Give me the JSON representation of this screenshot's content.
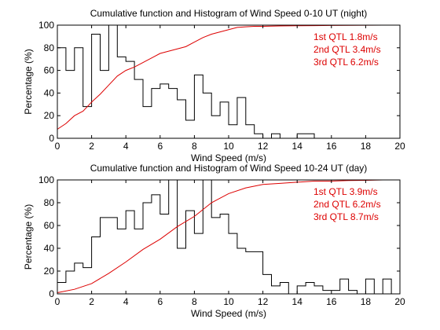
{
  "chart_data": [
    {
      "type": "line",
      "title": "Cumulative function and Histogram of Wind Speed 0-10 UT (night)",
      "xlabel": "Wind Speed (m/s)",
      "ylabel": "Percentage (%)",
      "xlim": [
        0,
        20
      ],
      "ylim": [
        0,
        100
      ],
      "xticks": [
        "0",
        "2",
        "4",
        "6",
        "8",
        "10",
        "12",
        "14",
        "16",
        "18",
        "20"
      ],
      "yticks": [
        "0",
        "20",
        "40",
        "60",
        "80",
        "100"
      ],
      "grid": false,
      "annotations": [
        "1st QTL 1.8m/s",
        "2nd QTL 3.4m/s",
        "3rd QTL 6.2m/s"
      ],
      "histogram": {
        "color": "#000000",
        "bin_width": 0.5,
        "bin_starts": [
          0,
          0.5,
          1,
          1.5,
          2,
          2.5,
          3,
          3.5,
          4,
          4.5,
          5,
          5.5,
          6,
          6.5,
          7,
          7.5,
          8,
          8.5,
          9,
          9.5,
          10,
          10.5,
          11,
          11.5,
          12,
          12.5,
          13,
          13.5,
          14,
          14.5,
          15,
          15.5,
          16,
          16.5,
          17,
          17.5,
          18,
          18.5,
          19,
          19.5
        ],
        "values": [
          80,
          60,
          80,
          28,
          92,
          60,
          100,
          72,
          68,
          52,
          28,
          44,
          48,
          44,
          34,
          16,
          56,
          40,
          20,
          32,
          12,
          36,
          12,
          4,
          0,
          4,
          0,
          0,
          4,
          4,
          0,
          0,
          0,
          0,
          0,
          0,
          0,
          0,
          0,
          0
        ]
      },
      "cumulative": {
        "color": "#dd0000",
        "x": [
          0,
          0.5,
          1,
          1.5,
          2,
          2.5,
          3,
          3.5,
          4,
          4.5,
          5,
          5.5,
          6,
          6.5,
          7,
          7.5,
          8,
          8.5,
          9,
          9.5,
          10,
          10.5,
          11,
          11.5,
          12,
          13,
          14,
          15,
          16,
          17,
          18,
          19,
          20
        ],
        "y": [
          8,
          13,
          20,
          24,
          32,
          39,
          47,
          55,
          60,
          63,
          67,
          71,
          75,
          77,
          79,
          81,
          85,
          89,
          92,
          94,
          96,
          98,
          98.5,
          99,
          99,
          99.3,
          99.5,
          99.6,
          99.7,
          99.8,
          99.9,
          100,
          100
        ]
      }
    },
    {
      "type": "line",
      "title": "Cumulative function and Histogram of Wind Speed 10-24 UT (day)",
      "xlabel": "Wind Speed (m/s)",
      "ylabel": "Percentage (%)",
      "xlim": [
        0,
        20
      ],
      "ylim": [
        0,
        100
      ],
      "xticks": [
        "0",
        "2",
        "4",
        "6",
        "8",
        "10",
        "12",
        "14",
        "16",
        "18",
        "20"
      ],
      "yticks": [
        "0",
        "20",
        "40",
        "60",
        "80",
        "100"
      ],
      "grid": false,
      "annotations": [
        "1st QTL 3.9m/s",
        "2nd QTL 6.2m/s",
        "3rd QTL 8.7m/s"
      ],
      "histogram": {
        "color": "#000000",
        "bin_width": 0.5,
        "bin_starts": [
          0,
          0.5,
          1,
          1.5,
          2,
          2.5,
          3,
          3.5,
          4,
          4.5,
          5,
          5.5,
          6,
          6.5,
          7,
          7.5,
          8,
          8.5,
          9,
          9.5,
          10,
          10.5,
          11,
          11.5,
          12,
          12.5,
          13,
          13.5,
          14,
          14.5,
          15,
          15.5,
          16,
          16.5,
          17,
          17.5,
          18,
          18.5,
          19,
          19.5
        ],
        "values": [
          10,
          20,
          27,
          23,
          50,
          67,
          67,
          57,
          73,
          57,
          80,
          87,
          70,
          100,
          40,
          73,
          53,
          100,
          67,
          70,
          53,
          40,
          37,
          37,
          17,
          7,
          10,
          0,
          7,
          10,
          7,
          3,
          3,
          13,
          3,
          0,
          13,
          0,
          13,
          0
        ]
      },
      "cumulative": {
        "color": "#dd0000",
        "x": [
          0,
          1,
          2,
          3,
          4,
          5,
          6,
          7,
          8,
          9,
          10,
          11,
          12,
          13,
          14,
          15,
          16,
          17,
          18,
          19,
          20
        ],
        "y": [
          1,
          4,
          9,
          18,
          28,
          39,
          48,
          59,
          68,
          80,
          88,
          93,
          96,
          97,
          98,
          99,
          99,
          99.5,
          99.7,
          100,
          100
        ]
      }
    }
  ]
}
